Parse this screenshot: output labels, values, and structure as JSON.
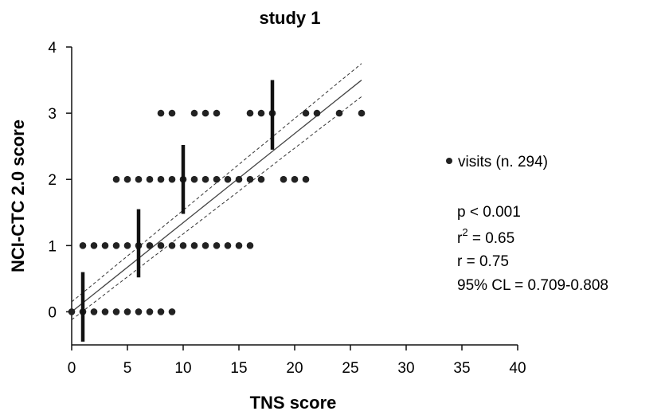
{
  "chart_data": {
    "type": "scatter",
    "title": "study 1",
    "xlabel": "TNS score",
    "ylabel": "NCI-CTC 2.0 score",
    "xlim": [
      0,
      40
    ],
    "ylim": [
      -0.5,
      4
    ],
    "xticks": [
      0,
      5,
      10,
      15,
      20,
      25,
      30,
      35,
      40
    ],
    "yticks": [
      0,
      1,
      2,
      3,
      4
    ],
    "grid": false,
    "series": [
      {
        "name": "visits (n. 294)",
        "points": [
          [
            0,
            0
          ],
          [
            1,
            0
          ],
          [
            2,
            0
          ],
          [
            3,
            0
          ],
          [
            4,
            0
          ],
          [
            5,
            0
          ],
          [
            6,
            0
          ],
          [
            7,
            0
          ],
          [
            8,
            0
          ],
          [
            9,
            0
          ],
          [
            1,
            1
          ],
          [
            2,
            1
          ],
          [
            3,
            1
          ],
          [
            4,
            1
          ],
          [
            5,
            1
          ],
          [
            6,
            1
          ],
          [
            7,
            1
          ],
          [
            8,
            1
          ],
          [
            9,
            1
          ],
          [
            10,
            1
          ],
          [
            11,
            1
          ],
          [
            12,
            1
          ],
          [
            13,
            1
          ],
          [
            14,
            1
          ],
          [
            15,
            1
          ],
          [
            16,
            1
          ],
          [
            4,
            2
          ],
          [
            5,
            2
          ],
          [
            6,
            2
          ],
          [
            7,
            2
          ],
          [
            8,
            2
          ],
          [
            9,
            2
          ],
          [
            10,
            2
          ],
          [
            11,
            2
          ],
          [
            12,
            2
          ],
          [
            13,
            2
          ],
          [
            14,
            2
          ],
          [
            15,
            2
          ],
          [
            16,
            2
          ],
          [
            17,
            2
          ],
          [
            19,
            2
          ],
          [
            20,
            2
          ],
          [
            21,
            2
          ],
          [
            8,
            3
          ],
          [
            9,
            3
          ],
          [
            11,
            3
          ],
          [
            12,
            3
          ],
          [
            13,
            3
          ],
          [
            16,
            3
          ],
          [
            17,
            3
          ],
          [
            18,
            3
          ],
          [
            21,
            3
          ],
          [
            22,
            3
          ],
          [
            24,
            3
          ],
          [
            26,
            3
          ]
        ]
      }
    ],
    "error_bars": [
      {
        "x": 1,
        "low": -0.45,
        "high": 0.6
      },
      {
        "x": 6,
        "low": 0.52,
        "high": 1.55
      },
      {
        "x": 10,
        "low": 1.48,
        "high": 2.52
      },
      {
        "x": 18,
        "low": 2.45,
        "high": 3.5
      }
    ],
    "regression": {
      "x0": 0,
      "y0": 0.0,
      "x1": 26,
      "y1": 3.5
    },
    "confidence_band": {
      "upper": {
        "x0": 0,
        "y0": 0.15,
        "x1": 26,
        "y1": 3.75
      },
      "lower": {
        "x0": 0,
        "y0": -0.12,
        "x1": 26,
        "y1": 3.25
      }
    },
    "legend": {
      "position": "right",
      "label": "visits (n. 294)"
    },
    "annotations": [
      "p < 0.001",
      "r",
      "2",
      " = 0.65",
      "r = 0.75",
      "95% CL = 0.709-0.808"
    ]
  }
}
